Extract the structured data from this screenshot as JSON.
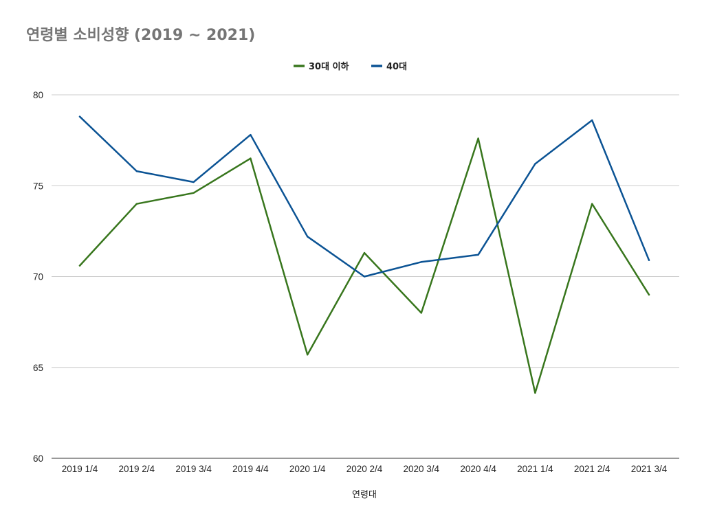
{
  "chart_data": {
    "type": "line",
    "title": "연령별 소비성향 (2019 ~ 2021)",
    "xlabel": "연령대",
    "ylabel": "",
    "ylim": [
      60,
      80
    ],
    "yticks": [
      60,
      65,
      70,
      75,
      80
    ],
    "grid": true,
    "legend_position": "top",
    "categories": [
      "2019 1/4",
      "2019 2/4",
      "2019 3/4",
      "2019 4/4",
      "2020 1/4",
      "2020 2/4",
      "2020 3/4",
      "2020 4/4",
      "2021 1/4",
      "2021 2/4",
      "2021 3/4"
    ],
    "series": [
      {
        "name": "30대 이하",
        "color": "#38761d",
        "values": [
          70.6,
          74.0,
          74.6,
          76.5,
          65.7,
          71.3,
          68.0,
          77.6,
          63.6,
          74.0,
          69.0
        ]
      },
      {
        "name": "40대",
        "color": "#0b5394",
        "values": [
          78.8,
          75.8,
          75.2,
          77.8,
          72.2,
          70.0,
          70.8,
          71.2,
          76.2,
          78.6,
          70.9
        ]
      }
    ]
  }
}
